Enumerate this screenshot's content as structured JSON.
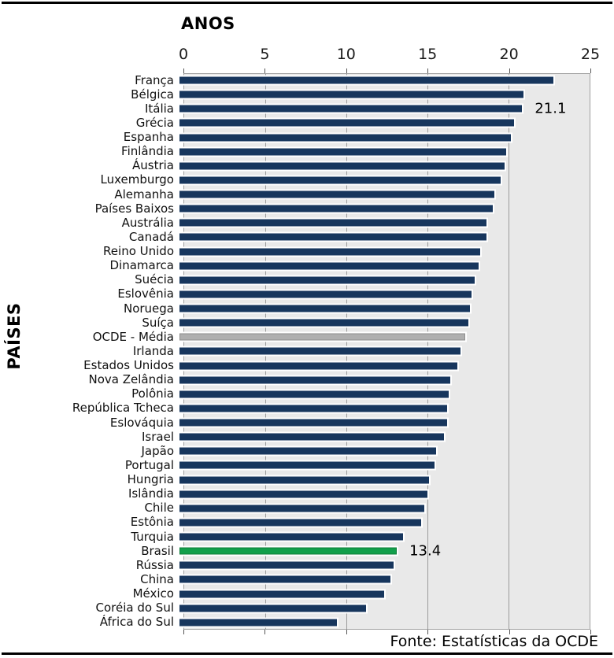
{
  "chart": {
    "x_axis_title": "ANOS",
    "y_axis_title": "PAÍSES",
    "source_note": "Fonte: Estatísticas da OCDE",
    "colors": {
      "bar_default": "#17365D",
      "bar_highlight_green": "#129F4B",
      "bar_average_gray": "#AFAFAF",
      "plot_background": "#E9E9E9",
      "gridline": "#9B9B9B"
    }
  },
  "chart_data": {
    "type": "bar",
    "orientation": "horizontal",
    "title": "ANOS",
    "xlabel": "ANOS",
    "ylabel": "PAÍSES",
    "xlim": [
      0,
      25
    ],
    "x_ticks": [
      0,
      5,
      10,
      15,
      20,
      25
    ],
    "grid": true,
    "legend": false,
    "source": "Fonte: Estatísticas da OCDE",
    "categories": [
      "França",
      "Bélgica",
      "Itália",
      "Grécia",
      "Espanha",
      "Finlândia",
      "Áustria",
      "Luxemburgo",
      "Alemanha",
      "Países Baixos",
      "Austrália",
      "Canadá",
      "Reino Unido",
      "Dinamarca",
      "Suécia",
      "Eslovênia",
      "Noruega",
      "Suíça",
      "OCDE - Média",
      "Irlanda",
      "Estados Unidos",
      "Nova Zelândia",
      "Polônia",
      "República Tcheca",
      "Eslováquia",
      "Israel",
      "Japão",
      "Portugal",
      "Hungria",
      "Islândia",
      "Chile",
      "Estônia",
      "Turquia",
      "Brasil",
      "Rússia",
      "China",
      "México",
      "Coréia do Sul",
      "África do Sul"
    ],
    "values": [
      23.0,
      21.2,
      21.1,
      20.6,
      20.4,
      20.1,
      20.0,
      19.8,
      19.4,
      19.3,
      18.9,
      18.9,
      18.5,
      18.4,
      18.2,
      18.0,
      17.9,
      17.8,
      17.6,
      17.3,
      17.1,
      16.7,
      16.6,
      16.5,
      16.5,
      16.3,
      15.8,
      15.7,
      15.4,
      15.3,
      15.1,
      14.9,
      13.8,
      13.4,
      13.2,
      13.0,
      12.6,
      11.5,
      9.7
    ],
    "annotations": [
      {
        "category": "Itália",
        "text": "21.1"
      },
      {
        "category": "Brasil",
        "text": "13.4"
      }
    ],
    "special_bars": [
      {
        "category": "OCDE - Média",
        "role": "average",
        "color": "#AFAFAF"
      },
      {
        "category": "Brasil",
        "role": "highlight",
        "color": "#129F4B"
      }
    ]
  }
}
